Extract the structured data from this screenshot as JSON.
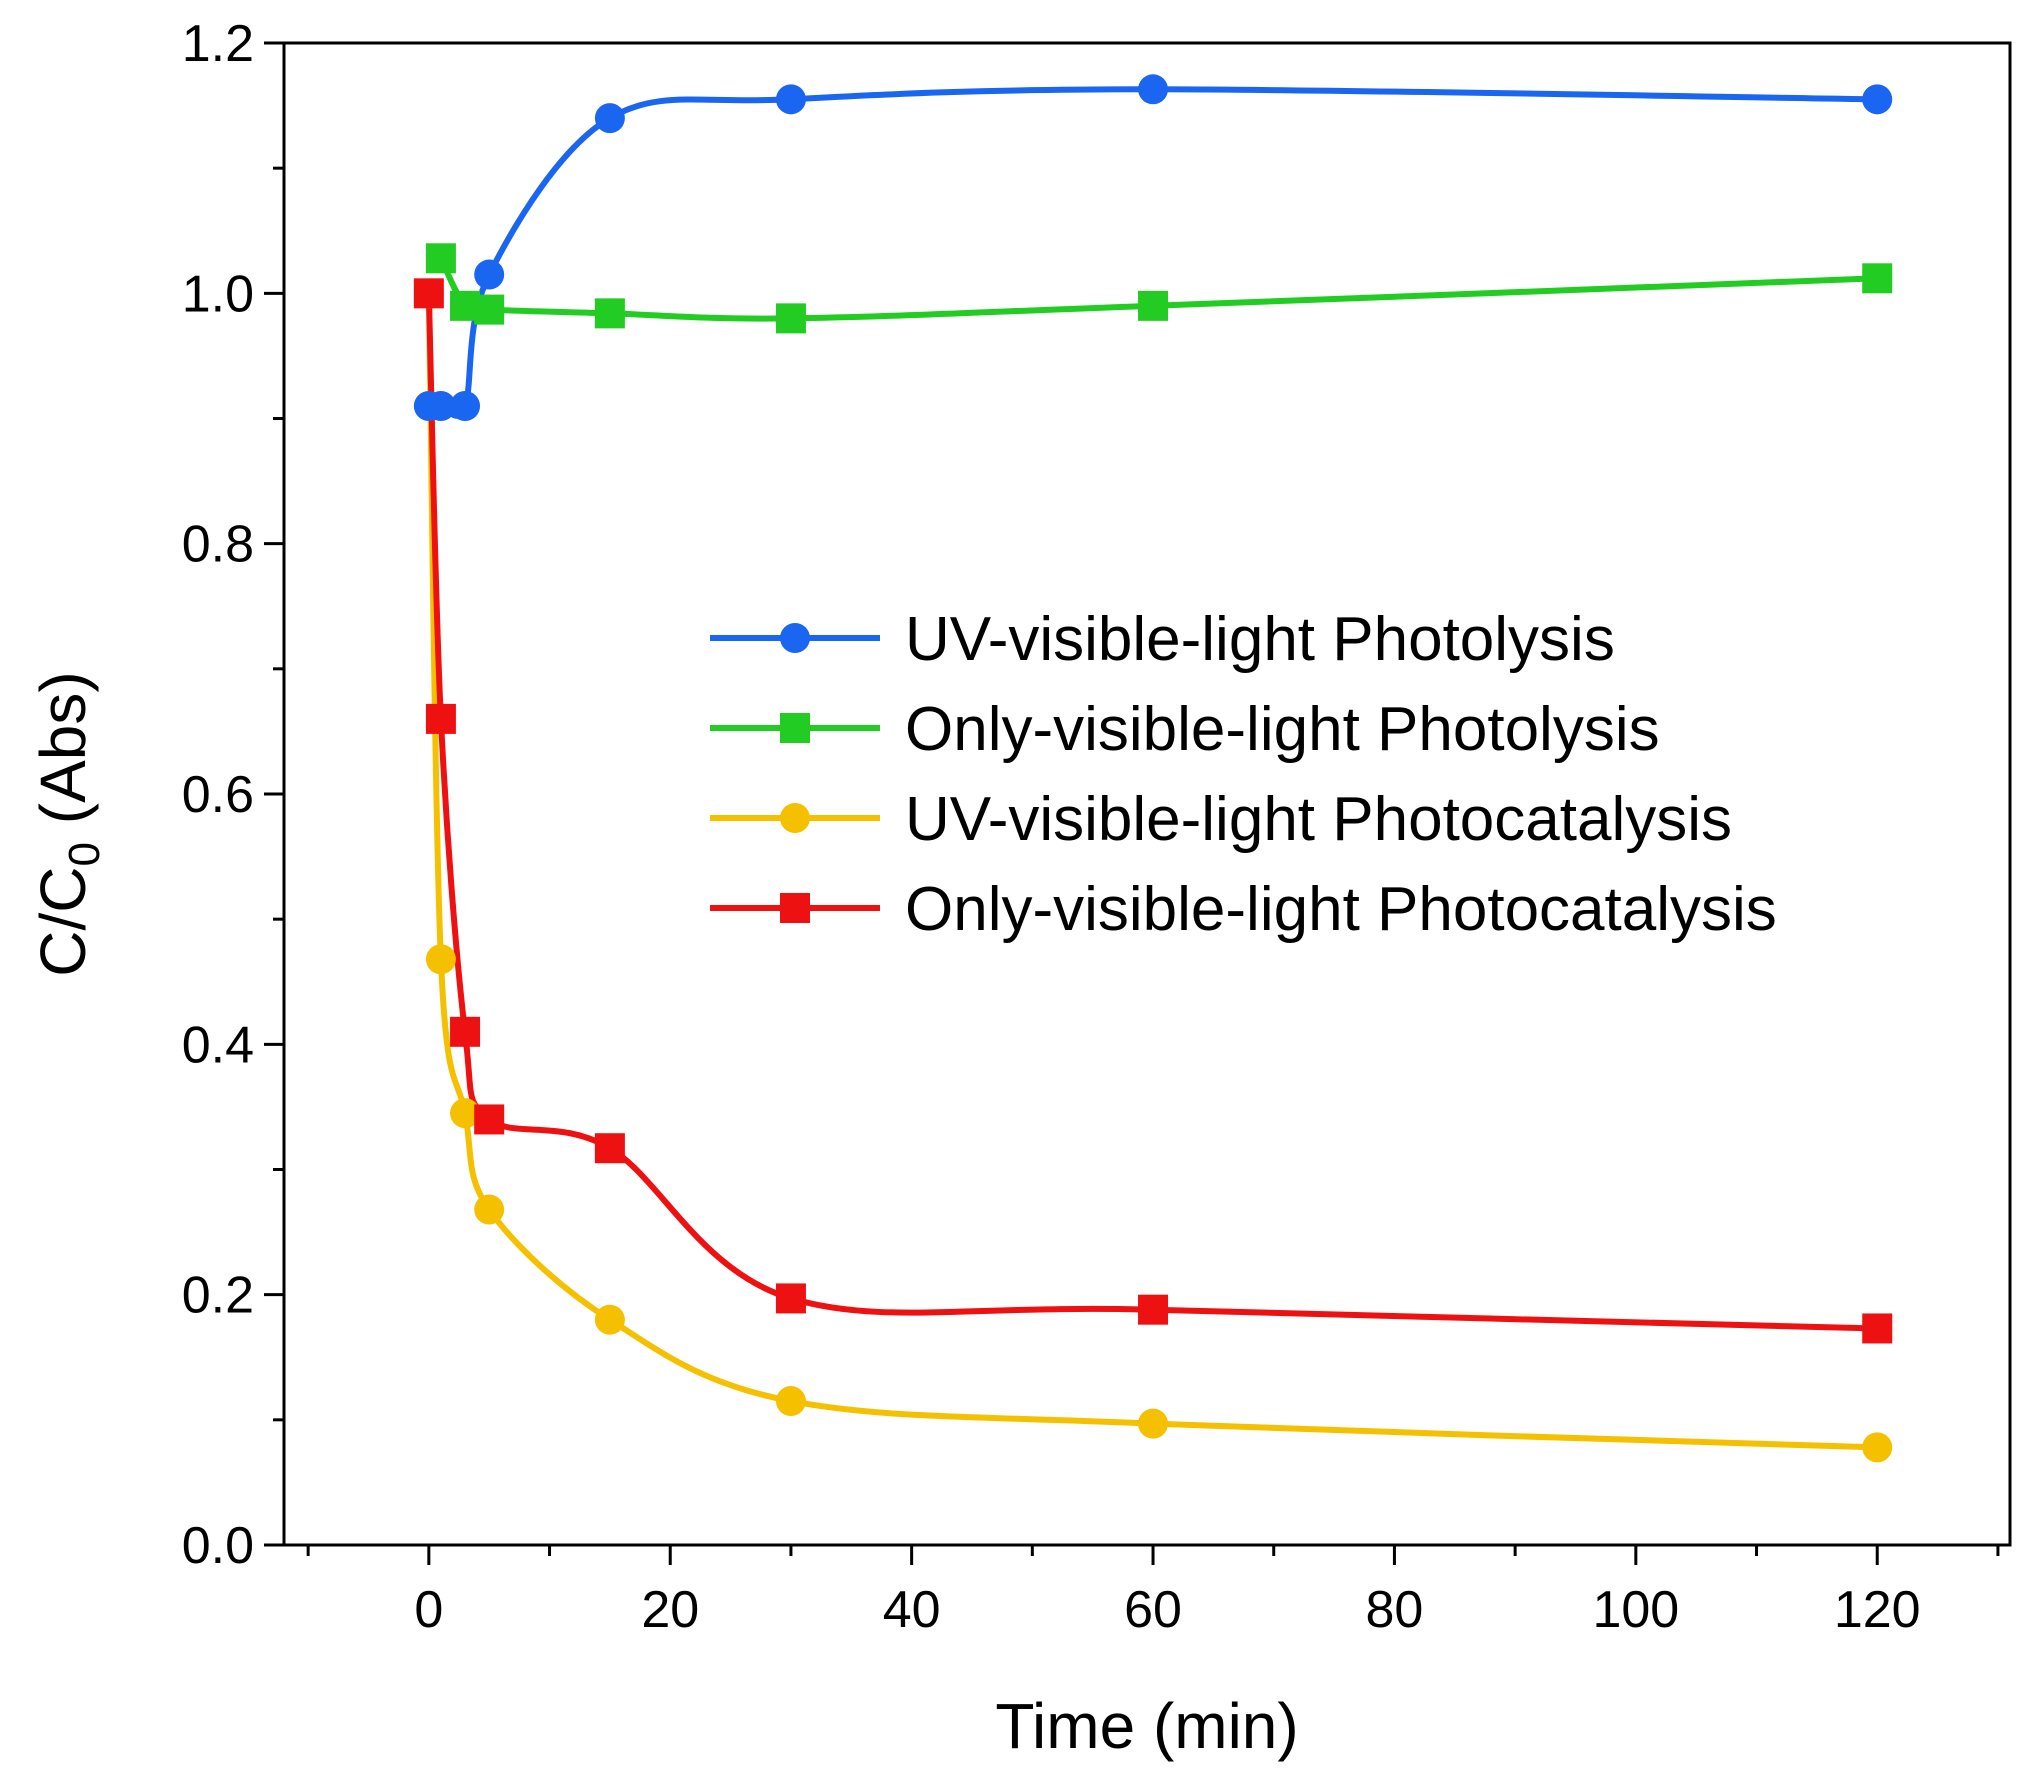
{
  "chart_data": {
    "type": "line",
    "title": "",
    "xlabel": "Time (min)",
    "ylabel": {
      "main": "C/C",
      "subscript": "0",
      "suffix": " (Abs)"
    },
    "xlim": [
      -12,
      131
    ],
    "ylim": [
      0.0,
      1.2
    ],
    "xticks": [
      0,
      20,
      40,
      60,
      80,
      100,
      120
    ],
    "xtick_labels": [
      "0",
      "20",
      "40",
      "60",
      "80",
      "100",
      "120"
    ],
    "yticks": [
      0.0,
      0.2,
      0.4,
      0.6,
      0.8,
      1.0,
      1.2
    ],
    "ytick_labels": [
      "0.0",
      "0.2",
      "0.4",
      "0.6",
      "0.8",
      "1.0",
      "1.2"
    ],
    "grid": false,
    "legend_position": "center-right",
    "series": [
      {
        "name": "UV-visible-light Photolysis",
        "color": "#1a66f0",
        "marker": "circle",
        "x": [
          0,
          1,
          3,
          5,
          15,
          30,
          60,
          120
        ],
        "y": [
          0.91,
          0.91,
          0.91,
          1.015,
          1.14,
          1.155,
          1.163,
          1.155
        ]
      },
      {
        "name": "Only-visible-light Photolysis",
        "color": "#22cc22",
        "marker": "square",
        "x": [
          1,
          3,
          5,
          15,
          30,
          60,
          120
        ],
        "y": [
          1.028,
          0.99,
          0.987,
          0.984,
          0.98,
          0.99,
          1.012
        ]
      },
      {
        "name": "UV-visible-light Photocatalysis",
        "color": "#f5c000",
        "marker": "circle",
        "x": [
          0,
          1,
          3,
          5,
          15,
          30,
          60,
          120
        ],
        "y": [
          1.0,
          0.468,
          0.345,
          0.268,
          0.18,
          0.115,
          0.097,
          0.078
        ]
      },
      {
        "name": "Only-visible-light Photocatalysis",
        "color": "#ee1111",
        "marker": "square",
        "x": [
          0,
          1,
          3,
          5,
          15,
          30,
          60,
          120
        ],
        "y": [
          1.0,
          0.66,
          0.41,
          0.34,
          0.317,
          0.197,
          0.188,
          0.173
        ]
      }
    ]
  }
}
